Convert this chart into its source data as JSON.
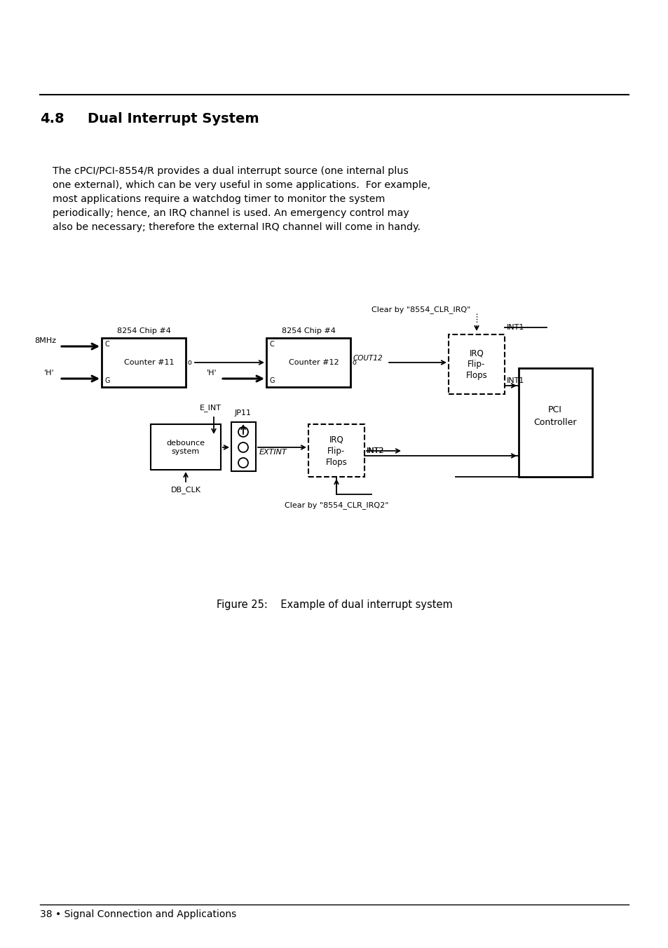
{
  "page_bg": "#ffffff",
  "section_number": "4.8",
  "section_title": "Dual Interrupt System",
  "body_text_lines": [
    "    The cPCI/PCI-8554/R provides a dual interrupt source (one internal plus",
    "    one external), which can be very useful in some applications.  For example,",
    "    most applications require a watchdog timer to monitor the system",
    "    periodically; hence, an IRQ channel is used. An emergency control may",
    "    also be necessary; therefore the external IRQ channel will come in handy."
  ],
  "figure_caption": "Figure 25:    Example of dual interrupt system",
  "footer_text": "38 • Signal Connection and Applications",
  "title_fontsize": 14,
  "body_fontsize": 10.3,
  "caption_fontsize": 10.5,
  "footer_fontsize": 10
}
